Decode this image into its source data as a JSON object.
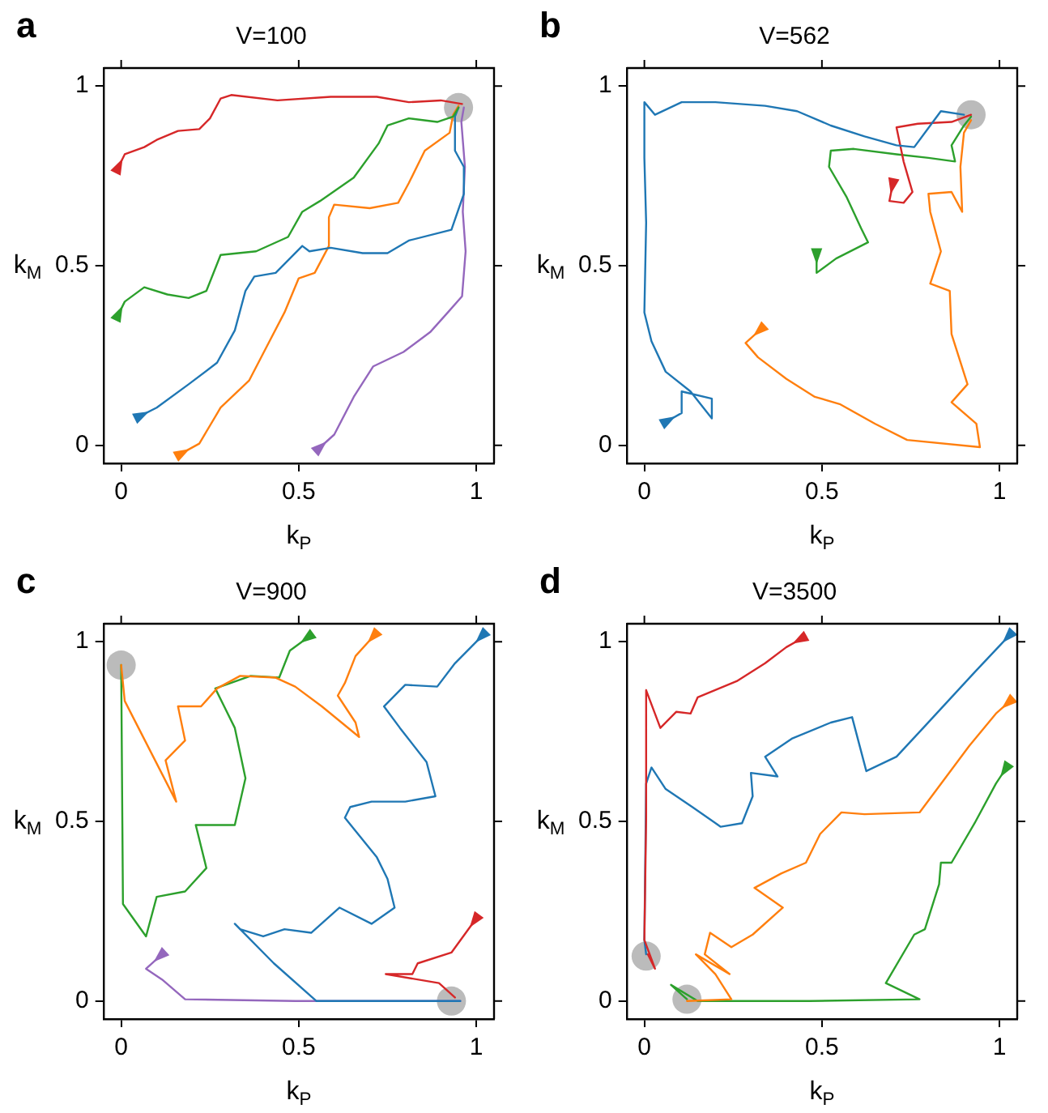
{
  "chart_data": [
    {
      "type": "line",
      "title": "V=100",
      "xlabel": "k$_{P}$",
      "ylabel": "k$_{M}$",
      "annotations": [
        "a"
      ],
      "xlim": [
        -0.05,
        1.05
      ],
      "ylim": [
        -0.05,
        1.05
      ],
      "xticks": [
        0,
        0.5,
        1
      ],
      "yticks": [
        0,
        0.5,
        1
      ],
      "series": [
        {
          "type": "scatter",
          "marker": "circle",
          "color": "#bbbbbb",
          "x": [
            0.95
          ],
          "values": [
            0.94
          ]
        },
        {
          "color": "#d62728",
          "x": [
            -0.01,
            0.01,
            0.065,
            0.1,
            0.16,
            0.22,
            0.25,
            0.28,
            0.31,
            0.44,
            0.59,
            0.72,
            0.81,
            0.9,
            0.96
          ],
          "values": [
            0.77,
            0.81,
            0.83,
            0.85,
            0.875,
            0.88,
            0.91,
            0.965,
            0.975,
            0.96,
            0.97,
            0.97,
            0.955,
            0.96,
            0.95
          ]
        },
        {
          "color": "#2ca02c",
          "x": [
            -0.01,
            0.01,
            0.065,
            0.13,
            0.19,
            0.24,
            0.28,
            0.38,
            0.47,
            0.51,
            0.56,
            0.655,
            0.725,
            0.75,
            0.81,
            0.89,
            0.935,
            0.95
          ],
          "values": [
            0.36,
            0.4,
            0.44,
            0.42,
            0.41,
            0.43,
            0.53,
            0.54,
            0.58,
            0.65,
            0.68,
            0.745,
            0.84,
            0.89,
            0.91,
            0.9,
            0.915,
            0.94
          ]
        },
        {
          "color": "#1f77b4",
          "x": [
            0.05,
            0.1,
            0.19,
            0.27,
            0.32,
            0.35,
            0.375,
            0.435,
            0.51,
            0.53,
            0.59,
            0.68,
            0.75,
            0.81,
            0.93,
            0.965,
            0.965,
            0.94,
            0.94,
            0.95
          ],
          "values": [
            0.08,
            0.105,
            0.17,
            0.23,
            0.32,
            0.43,
            0.47,
            0.48,
            0.555,
            0.54,
            0.55,
            0.535,
            0.535,
            0.57,
            0.6,
            0.7,
            0.775,
            0.82,
            0.915,
            0.94
          ]
        },
        {
          "color": "#ff7f0e",
          "x": [
            0.165,
            0.22,
            0.28,
            0.36,
            0.41,
            0.46,
            0.5,
            0.545,
            0.585,
            0.585,
            0.6,
            0.7,
            0.78,
            0.81,
            0.855,
            0.925,
            0.935,
            0.95
          ],
          "values": [
            -0.025,
            0.005,
            0.105,
            0.18,
            0.275,
            0.37,
            0.465,
            0.48,
            0.555,
            0.635,
            0.67,
            0.66,
            0.675,
            0.73,
            0.82,
            0.87,
            0.92,
            0.945
          ]
        },
        {
          "color": "#9467bd",
          "x": [
            0.555,
            0.6,
            0.655,
            0.71,
            0.795,
            0.87,
            0.92,
            0.96,
            0.97,
            0.962,
            0.968,
            0.958,
            0.965
          ],
          "values": [
            -0.01,
            0.03,
            0.135,
            0.22,
            0.26,
            0.315,
            0.37,
            0.415,
            0.54,
            0.65,
            0.775,
            0.9,
            0.94
          ]
        }
      ]
    },
    {
      "type": "line",
      "title": "V=562",
      "xlabel": "k$_{P}$",
      "ylabel": "k$_{M}$",
      "annotations": [
        "b"
      ],
      "xlim": [
        -0.05,
        1.05
      ],
      "ylim": [
        -0.05,
        1.05
      ],
      "xticks": [
        0,
        0.5,
        1
      ],
      "yticks": [
        0,
        0.5,
        1
      ],
      "series": [
        {
          "type": "scatter",
          "marker": "circle",
          "color": "#bbbbbb",
          "x": [
            0.92
          ],
          "values": [
            0.92
          ]
        },
        {
          "color": "#1f77b4",
          "x": [
            0.06,
            0.105,
            0.105,
            0.19,
            0.19,
            0.13,
            0.06,
            0.02,
            0.0,
            0.005,
            0.0,
            0.0,
            0.03,
            0.105,
            0.2,
            0.34,
            0.43,
            0.525,
            0.62,
            0.71,
            0.76,
            0.805,
            0.835,
            0.9
          ],
          "values": [
            0.065,
            0.09,
            0.15,
            0.13,
            0.075,
            0.15,
            0.205,
            0.29,
            0.37,
            0.62,
            0.8,
            0.955,
            0.92,
            0.955,
            0.955,
            0.945,
            0.93,
            0.89,
            0.86,
            0.835,
            0.83,
            0.89,
            0.93,
            0.92
          ]
        },
        {
          "color": "#d62728",
          "x": [
            0.7,
            0.69,
            0.73,
            0.755,
            0.73,
            0.71,
            0.77,
            0.865,
            0.92
          ],
          "values": [
            0.73,
            0.68,
            0.675,
            0.705,
            0.79,
            0.885,
            0.895,
            0.9,
            0.92
          ]
        },
        {
          "color": "#2ca02c",
          "x": [
            0.485,
            0.485,
            0.54,
            0.63,
            0.61,
            0.57,
            0.52,
            0.525,
            0.59,
            0.71,
            0.8,
            0.875,
            0.865,
            0.9,
            0.92
          ],
          "values": [
            0.535,
            0.48,
            0.52,
            0.565,
            0.605,
            0.69,
            0.775,
            0.82,
            0.825,
            0.81,
            0.8,
            0.79,
            0.835,
            0.89,
            0.915
          ]
        },
        {
          "color": "#ff7f0e",
          "x": [
            0.33,
            0.285,
            0.32,
            0.4,
            0.48,
            0.55,
            0.65,
            0.74,
            0.945,
            0.935,
            0.865,
            0.91,
            0.865,
            0.86,
            0.805,
            0.835,
            0.805,
            0.8,
            0.865,
            0.895,
            0.89,
            0.9,
            0.92
          ],
          "values": [
            0.325,
            0.285,
            0.245,
            0.185,
            0.135,
            0.115,
            0.06,
            0.015,
            -0.005,
            0.06,
            0.12,
            0.17,
            0.31,
            0.43,
            0.45,
            0.54,
            0.65,
            0.7,
            0.705,
            0.65,
            0.775,
            0.87,
            0.905
          ]
        }
      ]
    },
    {
      "type": "line",
      "title": "V=900",
      "xlabel": "k$_{P}$",
      "ylabel": "k$_{M}$",
      "annotations": [
        "c"
      ],
      "xlim": [
        -0.05,
        1.05
      ],
      "ylim": [
        -0.05,
        1.05
      ],
      "xticks": [
        0,
        0.5,
        1
      ],
      "yticks": [
        0,
        0.5,
        1
      ],
      "series": [
        {
          "type": "scatter",
          "marker": "circle",
          "color": "#bbbbbb",
          "x": [
            0.0,
            0.93
          ],
          "values": [
            0.935,
            0.0
          ]
        },
        {
          "color": "#1f77b4",
          "x": [
            1.02,
            0.94,
            0.89,
            0.8,
            0.74,
            0.785,
            0.86,
            0.885,
            0.8,
            0.705,
            0.645,
            0.63,
            0.72,
            0.75,
            0.77,
            0.705,
            0.615,
            0.535,
            0.46,
            0.4,
            0.335,
            0.32,
            0.43,
            0.55,
            0.955
          ],
          "values": [
            1.02,
            0.94,
            0.875,
            0.88,
            0.82,
            0.76,
            0.665,
            0.57,
            0.555,
            0.555,
            0.54,
            0.51,
            0.4,
            0.34,
            0.26,
            0.215,
            0.26,
            0.19,
            0.2,
            0.18,
            0.2,
            0.215,
            0.105,
            0.0,
            0.0
          ]
        },
        {
          "color": "#ff7f0e",
          "x": [
            0.715,
            0.66,
            0.63,
            0.61,
            0.66,
            0.67,
            0.565,
            0.49,
            0.435,
            0.335,
            0.27,
            0.225,
            0.16,
            0.18,
            0.125,
            0.155,
            0.01,
            0.0
          ],
          "values": [
            1.02,
            0.96,
            0.885,
            0.85,
            0.775,
            0.735,
            0.82,
            0.875,
            0.9,
            0.905,
            0.87,
            0.82,
            0.82,
            0.725,
            0.67,
            0.555,
            0.835,
            0.935
          ]
        },
        {
          "color": "#2ca02c",
          "x": [
            0.53,
            0.475,
            0.445,
            0.365,
            0.265,
            0.29,
            0.32,
            0.35,
            0.32,
            0.21,
            0.24,
            0.18,
            0.1,
            0.07,
            0.005,
            0.0
          ],
          "values": [
            1.015,
            0.975,
            0.9,
            0.905,
            0.87,
            0.82,
            0.76,
            0.62,
            0.49,
            0.49,
            0.37,
            0.305,
            0.29,
            0.18,
            0.27,
            0.935
          ]
        },
        {
          "color": "#d62728",
          "x": [
            1.0,
            0.93,
            0.835,
            0.82,
            0.745,
            0.895,
            0.94
          ],
          "values": [
            0.23,
            0.135,
            0.105,
            0.075,
            0.075,
            0.05,
            0.01
          ]
        },
        {
          "color": "#9467bd",
          "x": [
            0.115,
            0.07,
            0.115,
            0.18,
            0.49,
            0.955
          ],
          "values": [
            0.13,
            0.09,
            0.06,
            0.005,
            0.0,
            0.0
          ]
        }
      ]
    },
    {
      "type": "line",
      "title": "V=3500",
      "xlabel": "k$_{P}$",
      "ylabel": "k$_{M}$",
      "annotations": [
        "d"
      ],
      "xlim": [
        -0.05,
        1.05
      ],
      "ylim": [
        -0.05,
        1.05
      ],
      "xticks": [
        0,
        0.5,
        1
      ],
      "yticks": [
        0,
        0.5,
        1
      ],
      "series": [
        {
          "type": "scatter",
          "marker": "circle",
          "color": "#bbbbbb",
          "x": [
            0.005,
            0.12
          ],
          "values": [
            0.125,
            0.005
          ]
        },
        {
          "color": "#d62728",
          "x": [
            0.445,
            0.4,
            0.34,
            0.26,
            0.15,
            0.13,
            0.09,
            0.045,
            0.005,
            0.005,
            0.0,
            0.03,
            0.01
          ],
          "values": [
            1.01,
            0.985,
            0.94,
            0.89,
            0.845,
            0.8,
            0.805,
            0.76,
            0.865,
            0.51,
            0.17,
            0.09,
            0.13
          ]
        },
        {
          "color": "#1f77b4",
          "x": [
            1.03,
            0.93,
            0.79,
            0.71,
            0.625,
            0.585,
            0.525,
            0.415,
            0.34,
            0.375,
            0.3,
            0.305,
            0.275,
            0.215,
            0.135,
            0.06,
            0.02,
            0.005,
            0.0,
            0.005
          ],
          "values": [
            1.02,
            0.915,
            0.765,
            0.68,
            0.64,
            0.79,
            0.775,
            0.73,
            0.68,
            0.625,
            0.635,
            0.57,
            0.495,
            0.485,
            0.54,
            0.59,
            0.65,
            0.605,
            0.17,
            0.13
          ]
        },
        {
          "color": "#ff7f0e",
          "x": [
            1.03,
            0.99,
            0.915,
            0.775,
            0.62,
            0.555,
            0.495,
            0.455,
            0.385,
            0.31,
            0.39,
            0.305,
            0.245,
            0.185,
            0.17,
            0.24,
            0.145,
            0.2,
            0.245,
            0.12
          ],
          "values": [
            0.835,
            0.8,
            0.71,
            0.525,
            0.52,
            0.525,
            0.465,
            0.385,
            0.355,
            0.315,
            0.26,
            0.185,
            0.15,
            0.19,
            0.13,
            0.075,
            0.13,
            0.075,
            0.005,
            0.0
          ]
        },
        {
          "color": "#2ca02c",
          "x": [
            1.02,
            0.99,
            0.93,
            0.865,
            0.835,
            0.83,
            0.79,
            0.76,
            0.68,
            0.775,
            0.465,
            0.15,
            0.075,
            0.12
          ],
          "values": [
            0.65,
            0.605,
            0.495,
            0.385,
            0.385,
            0.325,
            0.2,
            0.185,
            0.05,
            0.005,
            0.0,
            0.0,
            0.045,
            0.005
          ]
        }
      ]
    }
  ]
}
